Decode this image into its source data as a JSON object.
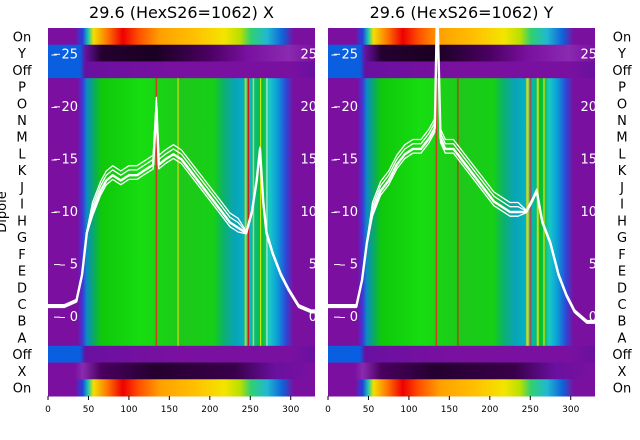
{
  "categories": [
    "On",
    "X",
    "Off",
    "A",
    "B",
    "C",
    "D",
    "E",
    "F",
    "G",
    "H",
    "I",
    "J",
    "K",
    "L",
    "M",
    "N",
    "O",
    "P",
    "Off",
    "Y",
    "On"
  ],
  "ylabel": "Dipole",
  "chart_data": [
    {
      "type": "heatmap",
      "title": "29.6 (HexS26=1062) X",
      "x_ticks": [
        0,
        50,
        100,
        150,
        200,
        250,
        300
      ],
      "xlim": [
        0,
        330
      ],
      "overlay_y_ticks": [
        0,
        5,
        10,
        15,
        20,
        25
      ],
      "overlay_ylim": [
        -7.5,
        27.5
      ],
      "colormap": "nipy_spectral",
      "overlay_line": {
        "color": "#ffffff",
        "points": [
          [
            0,
            1
          ],
          [
            20,
            1
          ],
          [
            35,
            1.5
          ],
          [
            42,
            4
          ],
          [
            48,
            8
          ],
          [
            55,
            10
          ],
          [
            65,
            12
          ],
          [
            72,
            13
          ],
          [
            80,
            13.5
          ],
          [
            90,
            13
          ],
          [
            100,
            13.5
          ],
          [
            110,
            13.5
          ],
          [
            120,
            14
          ],
          [
            130,
            14.5
          ],
          [
            134,
            20
          ],
          [
            137,
            14.5
          ],
          [
            145,
            15
          ],
          [
            155,
            15.5
          ],
          [
            165,
            15
          ],
          [
            175,
            14
          ],
          [
            185,
            13
          ],
          [
            195,
            12
          ],
          [
            205,
            11
          ],
          [
            215,
            10
          ],
          [
            225,
            9
          ],
          [
            235,
            8.5
          ],
          [
            245,
            8
          ],
          [
            252,
            10
          ],
          [
            258,
            13
          ],
          [
            262,
            16
          ],
          [
            266,
            11
          ],
          [
            270,
            8
          ],
          [
            278,
            6
          ],
          [
            288,
            4
          ],
          [
            298,
            2.5
          ],
          [
            310,
            1
          ],
          [
            325,
            0.5
          ],
          [
            330,
            0.5
          ]
        ]
      }
    },
    {
      "type": "heatmap",
      "title": "29.6 (HexS26=1062) Y",
      "x_ticks": [
        0,
        50,
        100,
        150,
        200,
        250,
        300
      ],
      "xlim": [
        0,
        330
      ],
      "overlay_y_ticks": [
        0,
        5,
        10,
        15,
        20,
        25
      ],
      "overlay_ylim": [
        -7.5,
        27.5
      ],
      "colormap": "nipy_spectral",
      "overlay_line": {
        "color": "#ffffff",
        "points": [
          [
            0,
            1
          ],
          [
            20,
            1
          ],
          [
            35,
            1
          ],
          [
            42,
            3.5
          ],
          [
            48,
            7
          ],
          [
            55,
            10
          ],
          [
            65,
            12
          ],
          [
            75,
            13
          ],
          [
            85,
            14.5
          ],
          [
            95,
            15.5
          ],
          [
            105,
            16
          ],
          [
            115,
            16
          ],
          [
            125,
            17
          ],
          [
            132,
            18
          ],
          [
            135,
            30
          ],
          [
            139,
            17
          ],
          [
            145,
            16
          ],
          [
            155,
            16
          ],
          [
            165,
            15
          ],
          [
            175,
            14
          ],
          [
            185,
            13
          ],
          [
            195,
            12
          ],
          [
            205,
            11
          ],
          [
            215,
            10.5
          ],
          [
            225,
            10
          ],
          [
            235,
            10
          ],
          [
            245,
            10
          ],
          [
            252,
            11
          ],
          [
            258,
            12
          ],
          [
            265,
            9
          ],
          [
            275,
            7
          ],
          [
            285,
            4
          ],
          [
            295,
            2
          ],
          [
            305,
            0.5
          ],
          [
            320,
            -0.5
          ],
          [
            330,
            -0.5
          ]
        ]
      }
    }
  ]
}
